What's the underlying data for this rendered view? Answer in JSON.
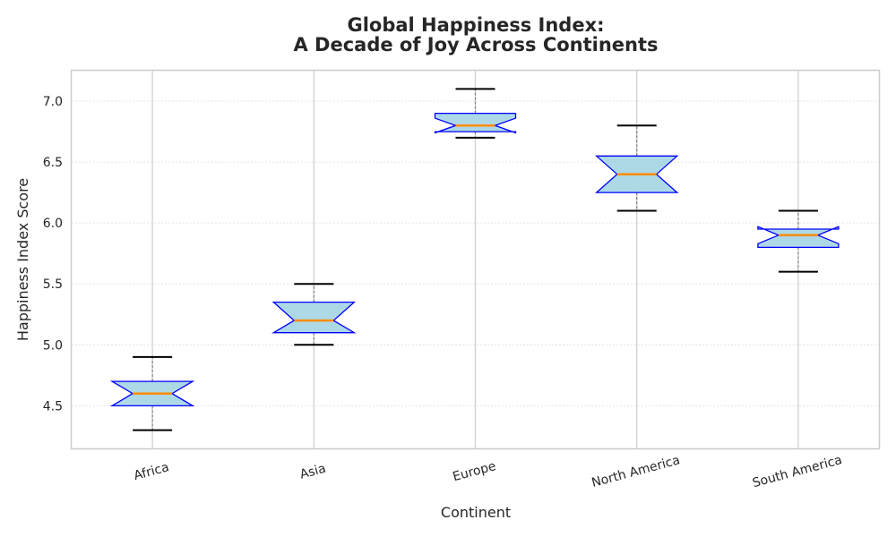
{
  "chart_data": {
    "type": "box",
    "title_lines": [
      "Global Happiness Index:",
      "A Decade of Joy Across Continents"
    ],
    "xlabel": "Continent",
    "ylabel": "Happiness Index Score",
    "ylim": [
      4.15,
      7.25
    ],
    "yticks": [
      4.5,
      5.0,
      5.5,
      6.0,
      6.5,
      7.0
    ],
    "ytick_labels": [
      "4.5",
      "5.0",
      "5.5",
      "6.0",
      "6.5",
      "7.0"
    ],
    "grid": true,
    "notched": true,
    "categories": [
      "Africa",
      "Asia",
      "Europe",
      "North America",
      "South America"
    ],
    "boxes": [
      {
        "category": "Africa",
        "whisker_low": 4.3,
        "q1": 4.5,
        "median": 4.6,
        "q3": 4.7,
        "whisker_high": 4.9,
        "notch_low": 4.5,
        "notch_high": 4.7
      },
      {
        "category": "Asia",
        "whisker_low": 5.0,
        "q1": 5.1,
        "median": 5.2,
        "q3": 5.35,
        "whisker_high": 5.5,
        "notch_low": 5.1,
        "notch_high": 5.35
      },
      {
        "category": "Europe",
        "whisker_low": 6.7,
        "q1": 6.75,
        "median": 6.8,
        "q3": 6.9,
        "whisker_high": 7.1,
        "notch_low": 6.74,
        "notch_high": 6.86
      },
      {
        "category": "North America",
        "whisker_low": 6.1,
        "q1": 6.25,
        "median": 6.4,
        "q3": 6.55,
        "whisker_high": 6.8,
        "notch_low": 6.25,
        "notch_high": 6.55
      },
      {
        "category": "South America",
        "whisker_low": 5.6,
        "q1": 5.8,
        "median": 5.9,
        "q3": 5.95,
        "whisker_high": 6.1,
        "notch_low": 5.83,
        "notch_high": 5.97
      }
    ],
    "colors": {
      "box_fill": "#add8e6",
      "box_edge": "#0000ff",
      "median": "#ff8c00",
      "whisker": "#808080",
      "cap": "#000000",
      "grid_x": "#cccccc",
      "grid_y": "#dddddd",
      "frame": "#cccccc"
    }
  }
}
